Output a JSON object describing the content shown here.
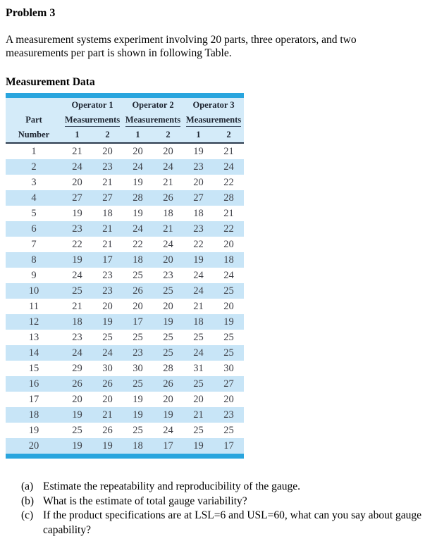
{
  "page": {
    "title": "Problem 3",
    "intro": "A measurement systems experiment involving 20 parts, three operators, and two measurements per part is shown in following Table.",
    "table_heading": "Measurement Data"
  },
  "colors": {
    "accent_bar": "#29a5de",
    "header_bg": "#d4ebf9",
    "stripe_bg": "#c8e5f7",
    "header_rule": "#2b3a4d",
    "data_text": "#3d3f46"
  },
  "table": {
    "part_col_line1": "Part",
    "part_col_line2": "Number",
    "operators": [
      "Operator 1",
      "Operator 2",
      "Operator 3"
    ],
    "measurements_label": "Measurements",
    "trial_labels": [
      "1",
      "2",
      "1",
      "2",
      "1",
      "2"
    ],
    "rows": [
      {
        "part": "1",
        "values": [
          "21",
          "20",
          "20",
          "20",
          "19",
          "21"
        ]
      },
      {
        "part": "2",
        "values": [
          "24",
          "23",
          "24",
          "24",
          "23",
          "24"
        ]
      },
      {
        "part": "3",
        "values": [
          "20",
          "21",
          "19",
          "21",
          "20",
          "22"
        ]
      },
      {
        "part": "4",
        "values": [
          "27",
          "27",
          "28",
          "26",
          "27",
          "28"
        ]
      },
      {
        "part": "5",
        "values": [
          "19",
          "18",
          "19",
          "18",
          "18",
          "21"
        ]
      },
      {
        "part": "6",
        "values": [
          "23",
          "21",
          "24",
          "21",
          "23",
          "22"
        ]
      },
      {
        "part": "7",
        "values": [
          "22",
          "21",
          "22",
          "24",
          "22",
          "20"
        ]
      },
      {
        "part": "8",
        "values": [
          "19",
          "17",
          "18",
          "20",
          "19",
          "18"
        ]
      },
      {
        "part": "9",
        "values": [
          "24",
          "23",
          "25",
          "23",
          "24",
          "24"
        ]
      },
      {
        "part": "10",
        "values": [
          "25",
          "23",
          "26",
          "25",
          "24",
          "25"
        ]
      },
      {
        "part": "11",
        "values": [
          "21",
          "20",
          "20",
          "20",
          "21",
          "20"
        ]
      },
      {
        "part": "12",
        "values": [
          "18",
          "19",
          "17",
          "19",
          "18",
          "19"
        ]
      },
      {
        "part": "13",
        "values": [
          "23",
          "25",
          "25",
          "25",
          "25",
          "25"
        ]
      },
      {
        "part": "14",
        "values": [
          "24",
          "24",
          "23",
          "25",
          "24",
          "25"
        ]
      },
      {
        "part": "15",
        "values": [
          "29",
          "30",
          "30",
          "28",
          "31",
          "30"
        ]
      },
      {
        "part": "16",
        "values": [
          "26",
          "26",
          "25",
          "26",
          "25",
          "27"
        ]
      },
      {
        "part": "17",
        "values": [
          "20",
          "20",
          "19",
          "20",
          "20",
          "20"
        ]
      },
      {
        "part": "18",
        "values": [
          "19",
          "21",
          "19",
          "19",
          "21",
          "23"
        ]
      },
      {
        "part": "19",
        "values": [
          "25",
          "26",
          "25",
          "24",
          "25",
          "25"
        ]
      },
      {
        "part": "20",
        "values": [
          "19",
          "19",
          "18",
          "17",
          "19",
          "17"
        ]
      }
    ]
  },
  "questions": [
    {
      "marker": "(a)",
      "text": "Estimate the repeatability and reproducibility of the gauge."
    },
    {
      "marker": "(b)",
      "text": "What is the estimate of total gauge variability?"
    },
    {
      "marker": "(c)",
      "text": "If the product specifications are at LSL=6 and USL=60, what can you say about gauge capability?"
    }
  ]
}
